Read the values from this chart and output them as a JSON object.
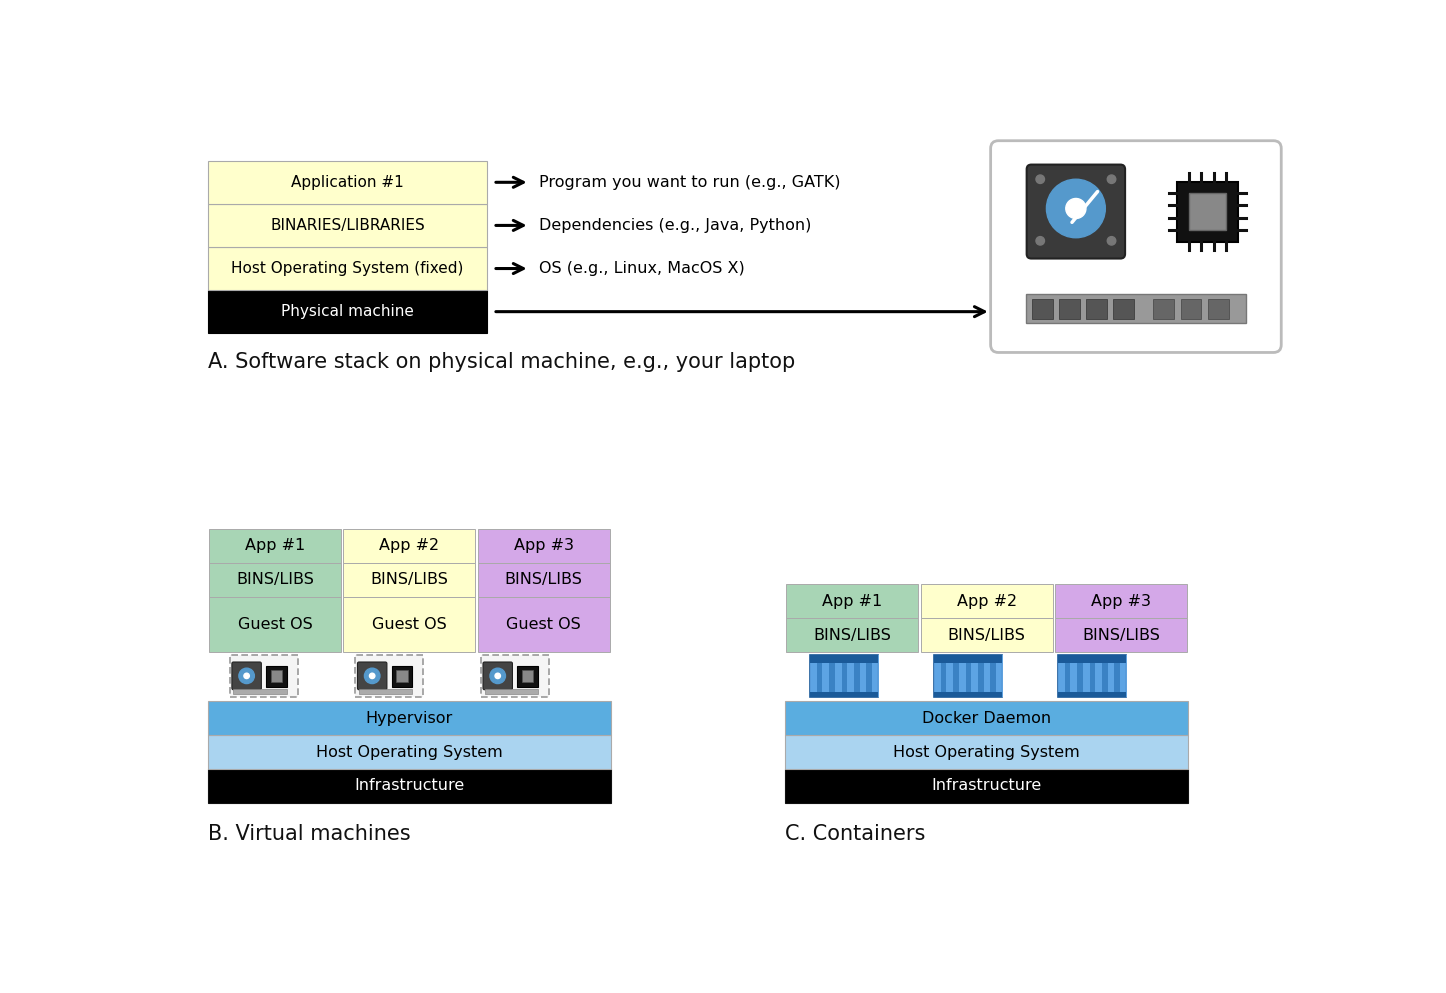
{
  "bg_color": "#ffffff",
  "title_a": "A. Software stack on physical machine, e.g., your laptop",
  "title_b": "B. Virtual machines",
  "title_c": "C. Containers",
  "section_a": {
    "layers": [
      {
        "label": "Application #1",
        "color": "#ffffcc",
        "text_color": "#000000"
      },
      {
        "label": "BINARIES/LIBRARIES",
        "color": "#ffffcc",
        "text_color": "#000000"
      },
      {
        "label": "Host Operating System (fixed)",
        "color": "#ffffcc",
        "text_color": "#000000"
      },
      {
        "label": "Physical machine",
        "color": "#000000",
        "text_color": "#ffffff"
      }
    ],
    "annotations": [
      "Program you want to run (e.g., GATK)",
      "Dependencies (e.g., Java, Python)",
      "OS (e.g., Linux, MacOS X)"
    ]
  },
  "section_b": {
    "vm_colors": [
      "#a8d5b5",
      "#ffffcc",
      "#d4a8e8"
    ],
    "app_labels": [
      "App #1",
      "App #2",
      "App #3"
    ],
    "bottom_layers": [
      {
        "label": "Infrastructure",
        "color": "#000000",
        "text_color": "#ffffff"
      },
      {
        "label": "Host Operating System",
        "color": "#aad4f0",
        "text_color": "#000000"
      },
      {
        "label": "Hypervisor",
        "color": "#5aade0",
        "text_color": "#000000"
      }
    ]
  },
  "section_c": {
    "vm_colors": [
      "#a8d5b5",
      "#ffffcc",
      "#d4a8e8"
    ],
    "app_labels": [
      "App #1",
      "App #2",
      "App #3"
    ],
    "bottom_layers": [
      {
        "label": "Infrastructure",
        "color": "#000000",
        "text_color": "#ffffff"
      },
      {
        "label": "Host Operating System",
        "color": "#aad4f0",
        "text_color": "#000000"
      },
      {
        "label": "Docker Daemon",
        "color": "#5aade0",
        "text_color": "#000000"
      }
    ]
  }
}
